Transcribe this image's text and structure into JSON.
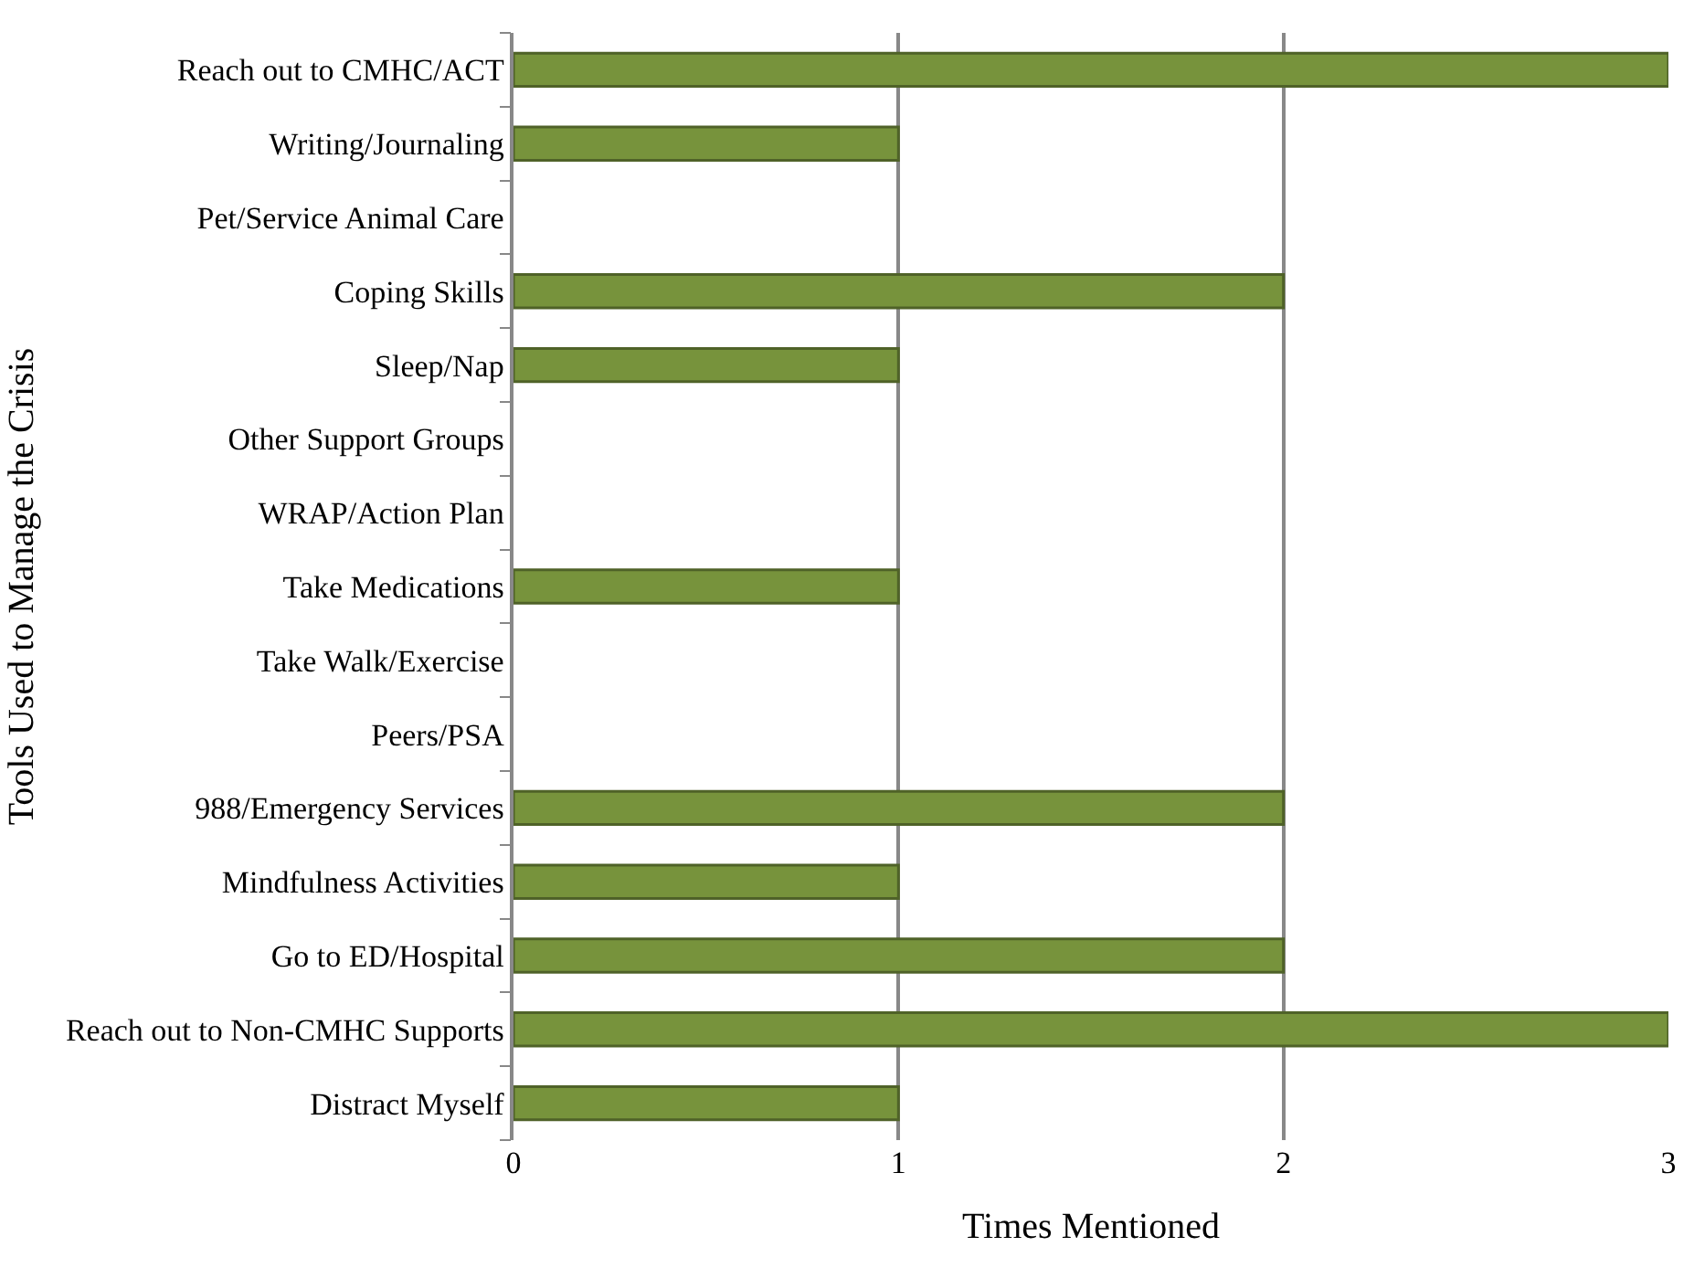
{
  "chart_data": {
    "type": "bar",
    "orientation": "horizontal",
    "categories": [
      "Reach out to CMHC/ACT",
      "Writing/Journaling",
      "Pet/Service Animal Care",
      "Coping Skills",
      "Sleep/Nap",
      "Other Support Groups",
      "WRAP/Action Plan",
      "Take Medications",
      "Take Walk/Exercise",
      "Peers/PSA",
      "988/Emergency Services",
      "Mindfulness Activities",
      "Go to ED/Hospital",
      "Reach out to Non-CMHC Supports",
      "Distract Myself"
    ],
    "values": [
      3,
      1,
      0,
      2,
      1,
      0,
      0,
      1,
      0,
      0,
      2,
      1,
      2,
      3,
      1
    ],
    "color": "#77933c",
    "xlabel": "Times Mentioned",
    "ylabel": "Tools Used to Manage the Crisis",
    "xlim": [
      0,
      3
    ],
    "xticks": [
      0,
      1,
      2,
      3
    ],
    "grid": "x",
    "legend": false
  }
}
